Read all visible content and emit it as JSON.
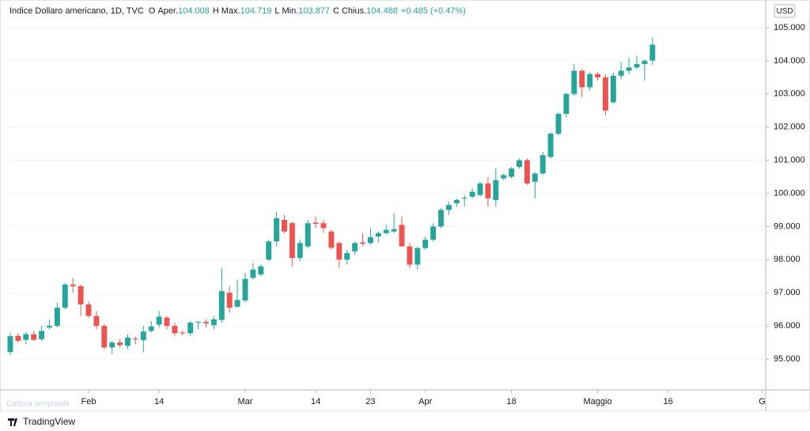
{
  "chart_data": {
    "type": "candlestick",
    "legend": {
      "symbol": "Indice Dollaro americano, 1D, TVC",
      "items": [
        {
          "key": "O",
          "label": "Aper.",
          "value": "104.008"
        },
        {
          "key": "H",
          "label": "Max.",
          "value": "104.719"
        },
        {
          "key": "L",
          "label": "Min.",
          "value": "103.877"
        },
        {
          "key": "C",
          "label": "Chius.",
          "value": "104.488"
        }
      ],
      "change": "+0.485 (+0.47%)"
    },
    "currency": "USD",
    "brand": "TradingView",
    "watermark": "Cattura temporale",
    "up_color": "#26a69a",
    "down_color": "#ef5350",
    "open": [
      95.21,
      95.7,
      95.58,
      95.75,
      95.6,
      95.95,
      96.0,
      96.55,
      97.25,
      97.2,
      96.65,
      96.3,
      96.0,
      95.35,
      95.5,
      95.4,
      95.62,
      95.57,
      95.85,
      96.04,
      96.25,
      96.0,
      95.8,
      95.78,
      96.1,
      96.12,
      96.02,
      96.18,
      97.0,
      96.58,
      96.77,
      97.45,
      97.55,
      98.0,
      98.55,
      99.2,
      99.1,
      98.05,
      98.4,
      99.12,
      99.1,
      98.85,
      98.5,
      98.0,
      98.25,
      98.52,
      98.5,
      98.7,
      98.8,
      98.85,
      99.05,
      98.4,
      97.85,
      98.35,
      98.6,
      99.0,
      99.5,
      99.7,
      99.85,
      99.9,
      99.95,
      100.3,
      99.8,
      100.45,
      100.5,
      100.8,
      101.0,
      100.35,
      100.6,
      101.1,
      101.8,
      102.4,
      103.0,
      103.7,
      103.2,
      103.6,
      103.5,
      102.75,
      103.55,
      103.7,
      103.8,
      103.9,
      104.008
    ],
    "high": [
      95.8,
      95.78,
      95.82,
      95.85,
      96.0,
      96.2,
      96.7,
      97.3,
      97.45,
      97.25,
      96.75,
      96.45,
      96.05,
      95.55,
      95.6,
      95.75,
      95.68,
      96.0,
      96.15,
      96.45,
      96.3,
      96.1,
      95.85,
      96.15,
      96.15,
      96.2,
      96.3,
      97.75,
      97.2,
      97.4,
      97.6,
      97.9,
      97.85,
      98.6,
      99.45,
      99.35,
      99.15,
      98.6,
      99.2,
      99.3,
      99.2,
      98.9,
      98.55,
      98.3,
      98.55,
      98.8,
      98.95,
      98.85,
      99.05,
      99.4,
      99.3,
      98.5,
      98.4,
      98.7,
      99.1,
      99.55,
      99.75,
      99.85,
      99.95,
      100.15,
      100.35,
      100.5,
      100.75,
      100.6,
      100.8,
      101.05,
      101.05,
      100.65,
      101.25,
      101.85,
      102.45,
      103.05,
      103.9,
      103.75,
      103.65,
      103.65,
      103.6,
      103.65,
      103.95,
      104.1,
      104.15,
      104.05,
      104.719
    ],
    "low": [
      95.13,
      95.5,
      95.45,
      95.55,
      95.55,
      95.9,
      95.95,
      96.5,
      97.0,
      96.3,
      96.25,
      95.9,
      95.3,
      95.15,
      95.35,
      95.3,
      95.45,
      95.2,
      95.8,
      95.95,
      95.9,
      95.7,
      95.72,
      95.7,
      95.9,
      95.95,
      95.9,
      96.1,
      96.4,
      96.55,
      96.7,
      97.4,
      97.5,
      97.95,
      98.4,
      98.8,
      97.8,
      97.95,
      98.35,
      98.95,
      98.8,
      98.3,
      97.75,
      97.85,
      98.15,
      98.4,
      98.45,
      98.5,
      98.75,
      98.8,
      98.4,
      97.75,
      97.7,
      98.3,
      98.55,
      98.95,
      99.35,
      99.6,
      99.6,
      99.85,
      99.9,
      99.6,
      99.6,
      100.4,
      100.45,
      100.75,
      100.25,
      99.85,
      100.55,
      101.05,
      101.75,
      102.3,
      102.95,
      102.9,
      103.1,
      103.4,
      102.35,
      102.7,
      103.45,
      103.6,
      103.75,
      103.4,
      103.877
    ],
    "close": [
      95.69,
      95.55,
      95.75,
      95.58,
      95.85,
      96.0,
      96.55,
      97.25,
      97.2,
      96.65,
      96.3,
      96.0,
      95.35,
      95.5,
      95.42,
      95.65,
      95.6,
      95.83,
      95.98,
      96.28,
      96.0,
      95.78,
      95.78,
      96.1,
      96.12,
      96.08,
      96.2,
      97.05,
      96.55,
      96.78,
      97.42,
      97.7,
      97.8,
      98.55,
      99.25,
      98.85,
      98.05,
      98.5,
      99.1,
      99.08,
      98.95,
      98.36,
      98.0,
      98.2,
      98.5,
      98.48,
      98.68,
      98.8,
      98.9,
      98.92,
      98.4,
      97.85,
      98.35,
      98.6,
      99.0,
      99.5,
      99.65,
      99.8,
      99.87,
      100.05,
      100.3,
      99.85,
      100.4,
      100.55,
      100.75,
      101.0,
      100.3,
      100.6,
      101.15,
      101.8,
      102.4,
      103.0,
      103.7,
      103.2,
      103.6,
      103.5,
      102.5,
      103.55,
      103.7,
      103.8,
      103.9,
      104.0,
      104.488
    ],
    "xlim": [
      -0.3,
      96.46
    ],
    "xticks": [
      {
        "value": 10,
        "label": "Feb"
      },
      {
        "value": 19,
        "label": "14"
      },
      {
        "value": 30,
        "label": "Mar"
      },
      {
        "value": 39,
        "label": "14"
      },
      {
        "value": 46,
        "label": "23"
      },
      {
        "value": 53,
        "label": "Apr"
      },
      {
        "value": 64,
        "label": "18"
      },
      {
        "value": 75,
        "label": "Maggio"
      },
      {
        "value": 84,
        "label": "16"
      },
      {
        "value": 96,
        "label": "G"
      }
    ],
    "ylim": [
      94.07,
      105.835
    ],
    "yticks": [
      {
        "value": 95,
        "label": "95.000"
      },
      {
        "value": 96,
        "label": "96.000"
      },
      {
        "value": 97,
        "label": "97.000"
      },
      {
        "value": 98,
        "label": "98.000"
      },
      {
        "value": 99,
        "label": "99.000"
      },
      {
        "value": 100,
        "label": "100.000"
      },
      {
        "value": 101,
        "label": "101.000"
      },
      {
        "value": 102,
        "label": "102.000"
      },
      {
        "value": 103,
        "label": "103.000"
      },
      {
        "value": 104,
        "label": "104.000"
      },
      {
        "value": 105,
        "label": "105.000"
      }
    ]
  }
}
